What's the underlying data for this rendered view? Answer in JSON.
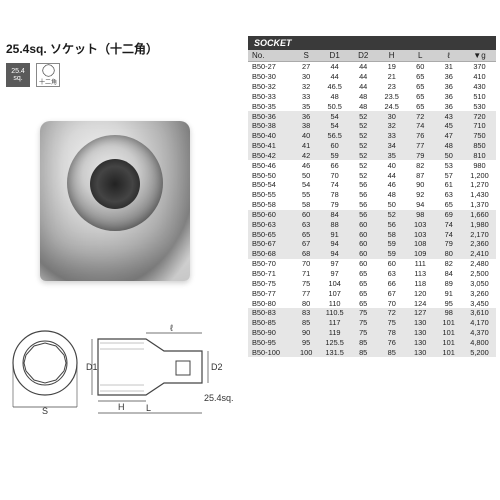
{
  "title": "25.4sq. ソケット（十二角）",
  "badge_sq": {
    "line1": "25.4",
    "line2": "sq."
  },
  "badge_dodeca_label": "十二角",
  "table_title": "SOCKET",
  "diagram": {
    "labels": {
      "S": "S",
      "D1": "D1",
      "D2": "D2",
      "H": "H",
      "L": "L",
      "l": "ℓ",
      "sq": "25.4sq."
    }
  },
  "columns": [
    "No.",
    "S",
    "D1",
    "D2",
    "H",
    "L",
    "ℓ",
    "▼g"
  ],
  "band_size": 5,
  "rows": [
    [
      "B50-27",
      "27",
      "44",
      "44",
      "19",
      "60",
      "31",
      "370"
    ],
    [
      "B50-30",
      "30",
      "44",
      "44",
      "21",
      "65",
      "36",
      "410"
    ],
    [
      "B50-32",
      "32",
      "46.5",
      "44",
      "23",
      "65",
      "36",
      "430"
    ],
    [
      "B50-33",
      "33",
      "48",
      "48",
      "23.5",
      "65",
      "36",
      "510"
    ],
    [
      "B50-35",
      "35",
      "50.5",
      "48",
      "24.5",
      "65",
      "36",
      "530"
    ],
    [
      "B50-36",
      "36",
      "54",
      "52",
      "30",
      "72",
      "43",
      "720"
    ],
    [
      "B50-38",
      "38",
      "54",
      "52",
      "32",
      "74",
      "45",
      "710"
    ],
    [
      "B50-40",
      "40",
      "56.5",
      "52",
      "33",
      "76",
      "47",
      "750"
    ],
    [
      "B50-41",
      "41",
      "60",
      "52",
      "34",
      "77",
      "48",
      "850"
    ],
    [
      "B50-42",
      "42",
      "59",
      "52",
      "35",
      "79",
      "50",
      "810"
    ],
    [
      "B50-46",
      "46",
      "66",
      "52",
      "40",
      "82",
      "53",
      "980"
    ],
    [
      "B50-50",
      "50",
      "70",
      "52",
      "44",
      "87",
      "57",
      "1,200"
    ],
    [
      "B50-54",
      "54",
      "74",
      "56",
      "46",
      "90",
      "61",
      "1,270"
    ],
    [
      "B50-55",
      "55",
      "78",
      "56",
      "48",
      "92",
      "63",
      "1,430"
    ],
    [
      "B50-58",
      "58",
      "79",
      "56",
      "50",
      "94",
      "65",
      "1,370"
    ],
    [
      "B50-60",
      "60",
      "84",
      "56",
      "52",
      "98",
      "69",
      "1,660"
    ],
    [
      "B50-63",
      "63",
      "88",
      "60",
      "56",
      "103",
      "74",
      "1,980"
    ],
    [
      "B50-65",
      "65",
      "91",
      "60",
      "58",
      "103",
      "74",
      "2,170"
    ],
    [
      "B50-67",
      "67",
      "94",
      "60",
      "59",
      "108",
      "79",
      "2,360"
    ],
    [
      "B50-68",
      "68",
      "94",
      "60",
      "59",
      "109",
      "80",
      "2,410"
    ],
    [
      "B50-70",
      "70",
      "97",
      "60",
      "60",
      "111",
      "82",
      "2,480"
    ],
    [
      "B50-71",
      "71",
      "97",
      "65",
      "63",
      "113",
      "84",
      "2,500"
    ],
    [
      "B50-75",
      "75",
      "104",
      "65",
      "66",
      "118",
      "89",
      "3,050"
    ],
    [
      "B50-77",
      "77",
      "107",
      "65",
      "67",
      "120",
      "91",
      "3,260"
    ],
    [
      "B50-80",
      "80",
      "110",
      "65",
      "70",
      "124",
      "95",
      "3,450"
    ],
    [
      "B50-83",
      "83",
      "110.5",
      "75",
      "72",
      "127",
      "98",
      "3,610"
    ],
    [
      "B50-85",
      "85",
      "117",
      "75",
      "75",
      "130",
      "101",
      "4,170"
    ],
    [
      "B50-90",
      "90",
      "119",
      "75",
      "78",
      "130",
      "101",
      "4,370"
    ],
    [
      "B50-95",
      "95",
      "125.5",
      "85",
      "76",
      "130",
      "101",
      "4,800"
    ],
    [
      "B50-100",
      "100",
      "131.5",
      "85",
      "85",
      "130",
      "101",
      "5,200"
    ]
  ]
}
